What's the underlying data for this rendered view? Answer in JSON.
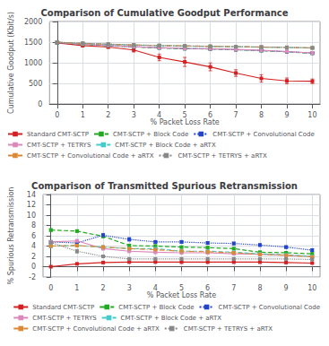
{
  "chart_data": [
    {
      "type": "line",
      "title": "Comparison of Cumulative Goodput Performance",
      "x_label": "% Packet Loss Rate",
      "y_label": "Cumulative Goodput (Kbit/s)",
      "x": [
        0,
        1,
        2,
        3,
        4,
        5,
        6,
        7,
        8,
        9,
        10
      ],
      "xlim": [
        -0.3,
        10.3
      ],
      "xticks": [
        0,
        1,
        2,
        3,
        4,
        5,
        6,
        7,
        8,
        9,
        10
      ],
      "ylim": [
        0,
        2000
      ],
      "yticks": [
        0,
        500,
        1000,
        1500,
        2000
      ],
      "grid": true,
      "legend": "lower left",
      "marker": "square",
      "series": [
        {
          "name": "Standard CMT-SCTP",
          "color": "#d42020",
          "line_style": "solid",
          "values": [
            1480,
            1415,
            1380,
            1310,
            1130,
            1020,
            900,
            750,
            620,
            560,
            550
          ],
          "errors": [
            15,
            30,
            25,
            50,
            80,
            110,
            95,
            80,
            90,
            70,
            55
          ]
        },
        {
          "name": "CMT-SCTP + Block Code",
          "color": "#22aa22",
          "line_style": "dashed",
          "values": [
            1490,
            1450,
            1410,
            1385,
            1360,
            1340,
            1335,
            1315,
            1295,
            1265,
            1230
          ],
          "errors": [
            8,
            12,
            15,
            15,
            15,
            15,
            15,
            15,
            15,
            15,
            18
          ]
        },
        {
          "name": "CMT-SCTP + Convolutional Code",
          "color": "#2244cc",
          "line_style": "dotted",
          "values": [
            1490,
            1452,
            1415,
            1388,
            1364,
            1344,
            1338,
            1318,
            1298,
            1268,
            1235
          ],
          "errors": [
            8,
            11,
            14,
            14,
            14,
            14,
            14,
            14,
            14,
            14,
            16
          ]
        },
        {
          "name": "CMT-SCTP + TETRYS",
          "color": "#dd88bb",
          "line_style": "solid",
          "values": [
            1492,
            1455,
            1418,
            1390,
            1368,
            1348,
            1340,
            1322,
            1302,
            1272,
            1238
          ],
          "errors": [
            7,
            10,
            13,
            13,
            13,
            13,
            13,
            13,
            13,
            13,
            15
          ]
        },
        {
          "name": "CMT-SCTP + Block Code + aRTX",
          "color": "#44cccc",
          "line_style": "dashed",
          "values": [
            1496,
            1468,
            1448,
            1428,
            1415,
            1405,
            1395,
            1388,
            1378,
            1370,
            1358
          ],
          "errors": [
            6,
            9,
            11,
            11,
            11,
            11,
            11,
            11,
            11,
            11,
            12
          ]
        },
        {
          "name": "CMT-SCTP + Convolutional Code + aRTX",
          "color": "#dd8833",
          "line_style": "dashdot",
          "values": [
            1497,
            1470,
            1450,
            1430,
            1417,
            1407,
            1397,
            1390,
            1380,
            1372,
            1360
          ],
          "errors": [
            6,
            8,
            10,
            10,
            10,
            10,
            10,
            10,
            10,
            10,
            11
          ]
        },
        {
          "name": "CMT-SCTP + TETRYS + aRTX",
          "color": "#888888",
          "line_style": "dotted",
          "values": [
            1498,
            1472,
            1452,
            1432,
            1419,
            1409,
            1399,
            1392,
            1382,
            1374,
            1362
          ],
          "errors": [
            5,
            7,
            9,
            9,
            9,
            9,
            9,
            9,
            9,
            9,
            10
          ]
        }
      ]
    },
    {
      "type": "line",
      "title": "Comparison of Transmitted Spurious Retransmission",
      "x_label": "% Packet Loss Rate",
      "y_label": "% Spurious Retransmission",
      "x": [
        0,
        1,
        2,
        3,
        4,
        5,
        6,
        7,
        8,
        9,
        10
      ],
      "xlim": [
        -0.3,
        10.3
      ],
      "xticks": [
        0,
        1,
        2,
        3,
        4,
        5,
        6,
        7,
        8,
        9,
        10
      ],
      "ylim": [
        -2,
        14
      ],
      "yticks": [
        -2,
        0,
        2,
        4,
        6,
        8,
        10,
        12,
        14
      ],
      "grid": true,
      "legend": "upper right",
      "marker": "square",
      "series": [
        {
          "name": "Standard CMT-SCTP",
          "color": "#d42020",
          "line_style": "solid",
          "values": [
            0.0,
            0.55,
            0.8,
            0.9,
            0.9,
            0.88,
            0.88,
            0.88,
            0.88,
            0.8,
            0.7
          ],
          "errors": [
            0.05,
            0.05,
            0.05,
            0.05,
            0.05,
            0.05,
            0.05,
            0.05,
            0.05,
            0.05,
            0.05
          ]
        },
        {
          "name": "CMT-SCTP + Block Code",
          "color": "#22aa22",
          "line_style": "dashed",
          "values": [
            7.1,
            6.9,
            5.9,
            4.1,
            4.0,
            3.8,
            3.7,
            3.5,
            2.8,
            2.7,
            2.5
          ],
          "errors": [
            0.25,
            0.25,
            0.3,
            0.25,
            0.25,
            0.2,
            0.2,
            0.2,
            0.2,
            0.2,
            0.2
          ]
        },
        {
          "name": "CMT-SCTP + Convolutional Code",
          "color": "#2244cc",
          "line_style": "dotted",
          "values": [
            4.8,
            4.6,
            6.1,
            5.3,
            4.8,
            4.8,
            4.6,
            4.5,
            4.2,
            3.8,
            3.2
          ],
          "errors": [
            0.25,
            0.25,
            0.35,
            0.35,
            0.25,
            0.25,
            0.25,
            0.25,
            0.25,
            0.25,
            0.25
          ]
        },
        {
          "name": "CMT-SCTP + TETRYS",
          "color": "#dd88bb",
          "line_style": "solid",
          "values": [
            4.8,
            5.0,
            3.5,
            3.0,
            2.8,
            2.7,
            2.7,
            2.5,
            2.4,
            2.2,
            2.0
          ],
          "errors": [
            0.25,
            0.25,
            0.25,
            0.25,
            0.25,
            0.2,
            0.2,
            0.2,
            0.2,
            0.2,
            0.2
          ]
        },
        {
          "name": "CMT-SCTP + Block Code + aRTX",
          "color": "#44cccc",
          "line_style": "dashed",
          "values": [
            4.0,
            4.1,
            3.8,
            3.5,
            3.5,
            3.0,
            3.0,
            2.8,
            2.5,
            2.3,
            2.0
          ],
          "errors": [
            0.25,
            0.25,
            0.25,
            0.25,
            0.25,
            0.2,
            0.2,
            0.2,
            0.2,
            0.2,
            0.2
          ]
        },
        {
          "name": "CMT-SCTP + Convolutional Code + aRTX",
          "color": "#dd8833",
          "line_style": "dashdot",
          "values": [
            4.0,
            4.1,
            3.8,
            3.5,
            3.3,
            3.0,
            2.9,
            2.7,
            2.4,
            2.2,
            1.9
          ],
          "errors": [
            0.25,
            0.25,
            0.25,
            0.25,
            0.25,
            0.2,
            0.2,
            0.2,
            0.2,
            0.2,
            0.2
          ]
        },
        {
          "name": "CMT-SCTP + TETRYS + aRTX",
          "color": "#888888",
          "line_style": "dotted",
          "values": [
            4.7,
            3.0,
            2.0,
            1.5,
            1.5,
            1.5,
            1.5,
            1.5,
            1.5,
            1.5,
            1.4
          ],
          "errors": [
            0.35,
            0.35,
            0.25,
            0.15,
            0.15,
            0.15,
            0.15,
            0.15,
            0.15,
            0.15,
            0.15
          ]
        }
      ]
    }
  ]
}
